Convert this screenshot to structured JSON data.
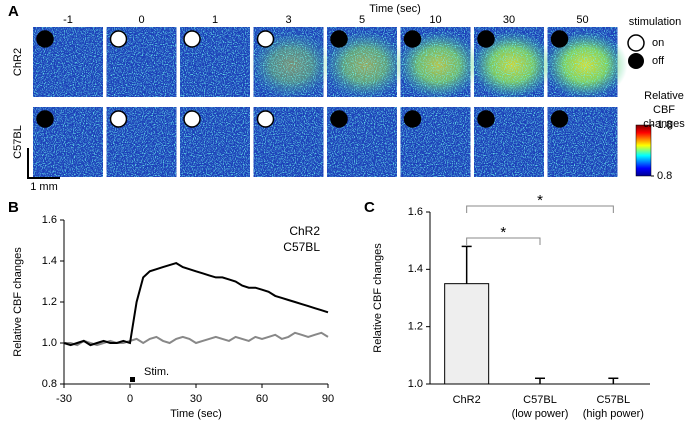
{
  "panel_a": {
    "label": "A",
    "time_title": "Time (sec)",
    "times": [
      -1,
      0,
      1,
      3,
      5,
      10,
      30,
      50
    ],
    "rows": [
      "ChR2",
      "C57BL"
    ],
    "stimulated": [
      false,
      true,
      true,
      true,
      false,
      false,
      false,
      false
    ],
    "stimulation": {
      "title": "stimulation",
      "on": "on",
      "off": "off"
    },
    "colorbar": {
      "title": "Relative CBF\nchanges",
      "lim": [
        0.8,
        1.8
      ],
      "ticks": [
        0.8,
        1.8
      ]
    },
    "scale_bar": "1 mm"
  },
  "chart_data": [
    {
      "type": "line",
      "label": "B",
      "ylabel": "Relative CBF changes",
      "xlabel": "Time  (sec)",
      "x": [
        -30,
        -27,
        -24,
        -21,
        -18,
        -15,
        -12,
        -9,
        -6,
        -3,
        0,
        3,
        6,
        9,
        12,
        15,
        18,
        21,
        24,
        27,
        30,
        33,
        36,
        39,
        42,
        45,
        48,
        51,
        54,
        57,
        60,
        63,
        66,
        69,
        72,
        75,
        78,
        81,
        84,
        87,
        90
      ],
      "series": [
        {
          "name": "ChR2",
          "color": "#000000",
          "values": [
            1.0,
            0.99,
            1.0,
            1.01,
            0.99,
            1.0,
            1.01,
            1.0,
            1.0,
            1.01,
            1.0,
            1.2,
            1.32,
            1.35,
            1.36,
            1.37,
            1.38,
            1.39,
            1.37,
            1.36,
            1.35,
            1.34,
            1.33,
            1.32,
            1.32,
            1.31,
            1.3,
            1.28,
            1.27,
            1.27,
            1.26,
            1.25,
            1.23,
            1.22,
            1.21,
            1.2,
            1.19,
            1.18,
            1.17,
            1.16,
            1.15
          ]
        },
        {
          "name": "C57BL",
          "color": "#888888",
          "values": [
            1.0,
            1.0,
            0.99,
            1.01,
            1.0,
            0.99,
            1.0,
            1.01,
            1.0,
            1.0,
            1.01,
            1.02,
            1.0,
            1.02,
            1.03,
            1.01,
            1.0,
            1.02,
            1.03,
            1.02,
            1.0,
            1.01,
            1.02,
            1.03,
            1.02,
            1.01,
            1.03,
            1.02,
            1.01,
            1.03,
            1.02,
            1.03,
            1.04,
            1.02,
            1.03,
            1.05,
            1.04,
            1.03,
            1.04,
            1.05,
            1.03
          ]
        }
      ],
      "xlim": [
        -30,
        90
      ],
      "xticks": [
        -30,
        0,
        30,
        60,
        90
      ],
      "ylim": [
        0.8,
        1.6
      ],
      "yticks": [
        0.8,
        {
          "value": 1,
          "label": "1.0"
        },
        1.2,
        1.4,
        1.6
      ],
      "annotation": "Stim."
    },
    {
      "type": "bar",
      "label": "C",
      "ylabel": "Relative CBF changes",
      "categories": [
        "ChR2",
        "C57BL\n(low power)",
        "C57BL\n(high power)"
      ],
      "values": [
        1.35,
        1.0,
        1.0
      ],
      "errors": [
        0.13,
        0.02,
        0.02
      ],
      "color": "#eeeeee",
      "ylim": [
        1,
        1.6
      ],
      "yticks": [
        {
          "value": 1,
          "label": "1.0"
        },
        1.2,
        1.4,
        1.6
      ],
      "annotations": [
        "*",
        "*"
      ]
    }
  ]
}
